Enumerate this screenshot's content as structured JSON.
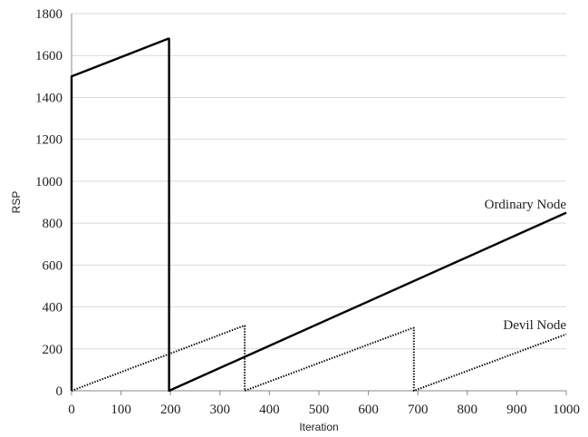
{
  "chart_data": {
    "type": "line",
    "xlabel": "Iteration",
    "ylabel": "RSP",
    "xlim": [
      0,
      1000
    ],
    "ylim": [
      0,
      1800
    ],
    "x_ticks": [
      "0",
      "100",
      "200",
      "300",
      "400",
      "500",
      "600",
      "700",
      "800",
      "900",
      "1000"
    ],
    "y_ticks": [
      "0",
      "200",
      "400",
      "600",
      "800",
      "1000",
      "1200",
      "1400",
      "1600",
      "1800"
    ],
    "grid": "horizontal",
    "legend": "none",
    "series": [
      {
        "name": "Ordinary Node",
        "style": "solid",
        "color": "#000000",
        "points": [
          [
            0,
            0
          ],
          [
            0,
            1500
          ],
          [
            195,
            1680
          ],
          [
            197,
            1680
          ],
          [
            197,
            0
          ],
          [
            1000,
            850
          ]
        ]
      },
      {
        "name": "Devil Node",
        "style": "dotted",
        "color": "#000000",
        "points": [
          [
            0,
            0
          ],
          [
            348,
            310
          ],
          [
            350,
            310
          ],
          [
            350,
            0
          ],
          [
            690,
            300
          ],
          [
            692,
            300
          ],
          [
            692,
            0
          ],
          [
            1000,
            270
          ]
        ]
      }
    ]
  }
}
